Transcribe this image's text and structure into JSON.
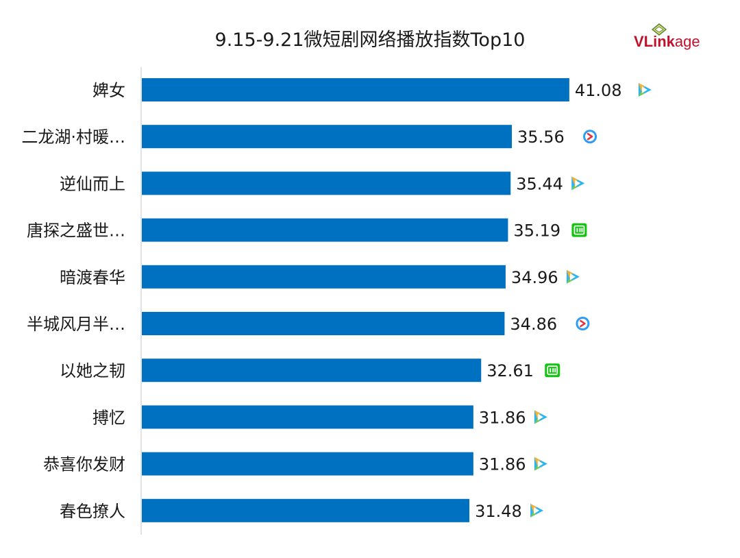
{
  "title": "9.15-9.21微短剧网络播放指数Top10",
  "logo": {
    "text_bold": "VLink",
    "text_light": "age",
    "color": "#c0132b"
  },
  "colors": {
    "bar": "#0070c0",
    "axis": "#d9d9d9"
  },
  "chart_data": {
    "type": "bar",
    "orientation": "horizontal",
    "title": "9.15-9.21微短剧网络播放指数Top10",
    "xlabel": "",
    "ylabel": "",
    "xlim": [
      0,
      45.5
    ],
    "grid": false,
    "categories": [
      "婢女",
      "二龙湖·村暖…",
      "逆仙而上",
      "唐探之盛世…",
      "暗渡春华",
      "半城风月半…",
      "以她之韧",
      "搏忆",
      "恭喜你发财",
      "春色撩人"
    ],
    "values": [
      41.08,
      35.56,
      35.44,
      35.19,
      34.96,
      34.86,
      32.61,
      31.86,
      31.86,
      31.48
    ],
    "value_labels": [
      "41.08",
      "35.56",
      "35.44",
      "35.19",
      "34.96",
      "34.86",
      "32.61",
      "31.86",
      "31.86",
      "31.48"
    ],
    "platform_icons": [
      "tencent-video-icon",
      "youku-icon",
      "tencent-video-icon",
      "iqiyi-icon",
      "tencent-video-icon",
      "youku-icon",
      "iqiyi-icon",
      "tencent-video-icon",
      "tencent-video-icon",
      "tencent-video-icon"
    ]
  }
}
